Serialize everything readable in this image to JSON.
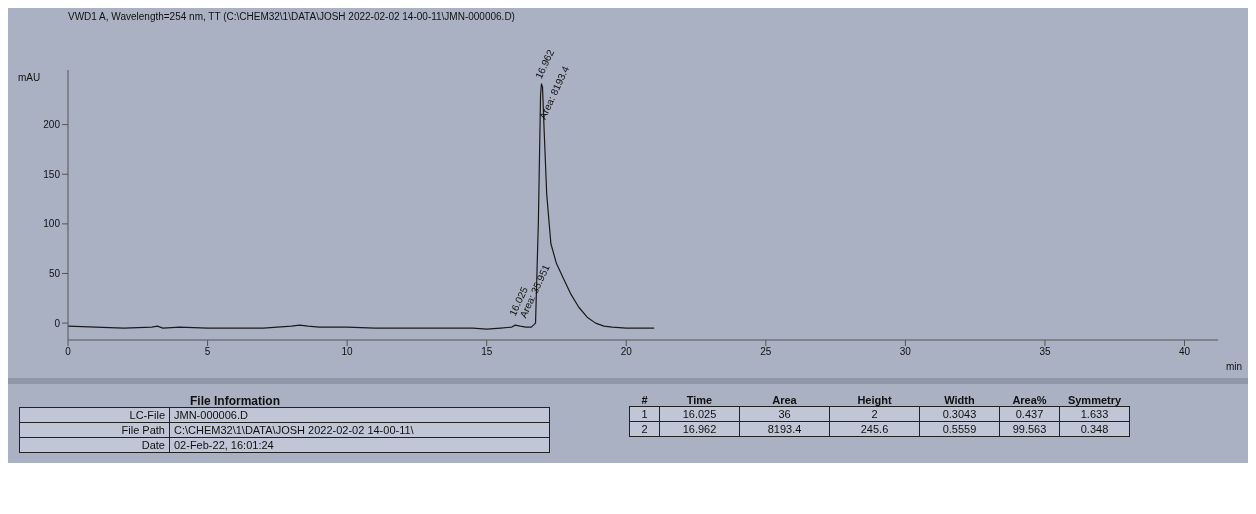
{
  "chart_data": [
    {
      "type": "line",
      "title": "VWD1 A, Wavelength=254 nm, TT (C:\\CHEM32\\1\\DATA\\JOSH 2022-02-02 14-00-11\\JMN-000006.D)",
      "xlabel": "min",
      "ylabel": "mAU",
      "x": [
        0,
        1,
        2,
        3,
        3.2,
        3.4,
        4,
        5,
        7,
        8,
        8.3,
        8.6,
        9,
        10,
        11,
        12,
        14,
        14.5,
        15,
        15.5,
        15.9,
        16.025,
        16.2,
        16.4,
        16.6,
        16.75,
        16.85,
        16.93,
        16.962,
        17.0,
        17.05,
        17.15,
        17.3,
        17.5,
        17.8,
        18,
        18.3,
        18.6,
        18.9,
        19.2,
        19.5,
        20,
        20.5,
        21
      ],
      "series": [
        {
          "color": "#1a1a1a",
          "values": [
            -3,
            -4,
            -5,
            -4,
            -3,
            -5,
            -4,
            -5,
            -5,
            -3,
            -2,
            -3,
            -4,
            -4,
            -5,
            -5,
            -5,
            -5,
            -6,
            -5,
            -4,
            -2,
            -3,
            -4,
            -4,
            0,
            100,
            230,
            241,
            238,
            200,
            130,
            80,
            60,
            42,
            30,
            16,
            6,
            0,
            -3,
            -4,
            -5,
            -5,
            -5
          ]
        }
      ],
      "xlim": [
        0,
        41.2
      ],
      "ylim": [
        -17,
        255
      ],
      "xticks": [
        0,
        5,
        10,
        15,
        20,
        25,
        30,
        35,
        40
      ],
      "yticks": [
        0,
        50,
        100,
        150,
        200
      ],
      "grid": false,
      "legend": false,
      "marker": "none",
      "annotations": [
        {
          "text": "16.025",
          "x": 16.025,
          "y": 2
        },
        {
          "text": "Area: 35.951",
          "x": 16.4,
          "y": 0
        },
        {
          "text": "16.962",
          "x": 16.962,
          "y": 241
        },
        {
          "text": "Area: 8193.4",
          "x": 17.1,
          "y": 200
        }
      ]
    },
    {
      "type": "other",
      "title": "File Information",
      "annotations": [
        "LC-File",
        "JMN-000006.D",
        "File Path",
        "C:\\CHEM32\\1\\DATA\\JOSH 2022-02-02 14-00-11\\",
        "Date",
        "02-Feb-22, 16:01:24"
      ]
    },
    {
      "type": "other",
      "annotations": [
        "#",
        "Time",
        "Area",
        "Height",
        "Width",
        "Area%",
        "Symmetry",
        "1",
        "16.025",
        "36",
        "2",
        "0.3043",
        "0.437",
        "1.633",
        "2",
        "16.962",
        "8193.4",
        "245.6",
        "0.5559",
        "99.563",
        "0.348"
      ]
    }
  ]
}
